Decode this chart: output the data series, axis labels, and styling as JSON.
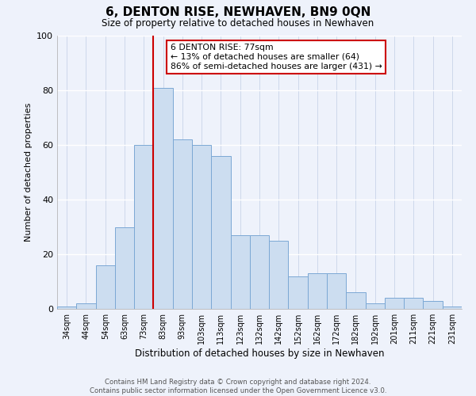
{
  "title": "6, DENTON RISE, NEWHAVEN, BN9 0QN",
  "subtitle": "Size of property relative to detached houses in Newhaven",
  "xlabel": "Distribution of detached houses by size in Newhaven",
  "ylabel": "Number of detached properties",
  "bar_labels": [
    "34sqm",
    "44sqm",
    "54sqm",
    "63sqm",
    "73sqm",
    "83sqm",
    "93sqm",
    "103sqm",
    "113sqm",
    "123sqm",
    "132sqm",
    "142sqm",
    "152sqm",
    "162sqm",
    "172sqm",
    "182sqm",
    "192sqm",
    "201sqm",
    "211sqm",
    "221sqm",
    "231sqm"
  ],
  "bar_values": [
    1,
    2,
    16,
    30,
    60,
    81,
    62,
    60,
    56,
    27,
    27,
    25,
    12,
    13,
    13,
    6,
    2,
    4,
    4,
    3,
    1
  ],
  "bar_color": "#ccddf0",
  "bar_edge_color": "#7ba8d4",
  "vline_color": "#cc0000",
  "annotation_title": "6 DENTON RISE: 77sqm",
  "annotation_line1": "← 13% of detached houses are smaller (64)",
  "annotation_line2": "86% of semi-detached houses are larger (431) →",
  "annotation_box_color": "#ffffff",
  "annotation_box_edge": "#cc0000",
  "footer_line1": "Contains HM Land Registry data © Crown copyright and database right 2024.",
  "footer_line2": "Contains public sector information licensed under the Open Government Licence v3.0.",
  "ylim": [
    0,
    100
  ],
  "background_color": "#eef2fb",
  "grid_color": "#ffffff",
  "vgrid_color": "#c8d4e8"
}
